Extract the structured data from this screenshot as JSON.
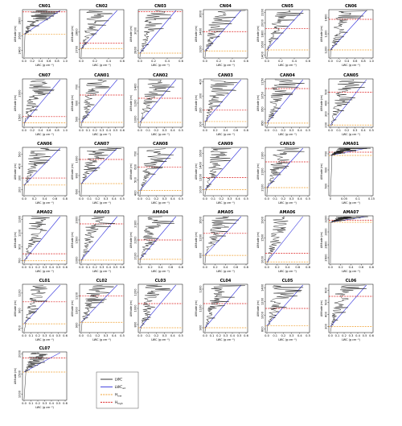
{
  "figure": {
    "colors": {
      "lwc": "#222222",
      "lwc_ad": "#3333dd",
      "h_low": "#f0a030",
      "h_high": "#dd2222"
    },
    "legend": {
      "entries": [
        {
          "key": "lwc",
          "label": "LWC",
          "sub": "",
          "style": "solid"
        },
        {
          "key": "lwc_ad",
          "label": "LWC",
          "sub": "ad",
          "style": "solid"
        },
        {
          "key": "h_low",
          "label": "H",
          "sub": "low",
          "style": "dashed"
        },
        {
          "key": "h_high",
          "label": "H",
          "sub": "high",
          "style": "dashed"
        }
      ]
    }
  },
  "chart_data": [
    {
      "type": "line",
      "title": "CN01",
      "xlabel": "LWC (g cm⁻³)",
      "ylabel": "Altitude (m)",
      "xticks": [
        "0.0",
        "0.2",
        "0.4",
        "0.6",
        "0.8",
        "1.0"
      ],
      "yticks": [
        "2400",
        "2600",
        "2800"
      ],
      "ylim": [
        2300,
        2950
      ],
      "h_low": 2620,
      "h_high": 2920
    },
    {
      "type": "line",
      "title": "CN02",
      "xlabel": "LWC (g cm⁻³)",
      "ylabel": "Altitude (m)",
      "xticks": [
        "0.0",
        "0.2",
        "0.4",
        "0.6"
      ],
      "yticks": [
        "2700",
        "2800"
      ],
      "ylim": [
        2650,
        2930
      ],
      "h_low": 2705,
      "h_high": 2735
    },
    {
      "type": "line",
      "title": "CN03",
      "xlabel": "LWC (g cm⁻³)",
      "ylabel": "Altitude (m)",
      "xticks": [
        "0.0",
        "0.2",
        "0.4",
        "0.6"
      ],
      "yticks": [
        "2800",
        "3000"
      ],
      "ylim": [
        2720,
        3220
      ],
      "h_low": 2770,
      "h_high": 3200
    },
    {
      "type": "line",
      "title": "CN04",
      "xlabel": "LWC (g cm⁻³)",
      "ylabel": "Altitude (m)",
      "xticks": [
        "0.0",
        "0.2",
        "0.4",
        "0.6"
      ],
      "yticks": [
        "3200",
        "3400",
        "3600"
      ],
      "ylim": [
        3100,
        3650
      ],
      "h_low": 3180,
      "h_high": 3400
    },
    {
      "type": "line",
      "title": "CN05",
      "xlabel": "LWC (g cm⁻³)",
      "ylabel": "Altitude (m)",
      "xticks": [
        "0.0",
        "0.2",
        "0.4",
        "0.6"
      ],
      "yticks": [
        "1400",
        "1600",
        "1800",
        "2000",
        "2200"
      ],
      "ylim": [
        1350,
        2250
      ],
      "h_low": 1500,
      "h_high": 1900
    },
    {
      "type": "line",
      "title": "CN06",
      "xlabel": "LWC (g cm⁻³)",
      "ylabel": "Altitude (m)",
      "xticks": [
        "0.0",
        "0.2",
        "0.4",
        "0.6",
        "0.8",
        "1.0"
      ],
      "yticks": [
        "1200",
        "1300",
        "1400"
      ],
      "ylim": [
        1150,
        1450
      ],
      "h_low": 1200,
      "h_high": 1390
    },
    {
      "type": "line",
      "title": "CN07",
      "xlabel": "LWC (g cm⁻³)",
      "ylabel": "Altitude (m)",
      "xticks": [
        "0.0",
        "0.2",
        "0.4",
        "0.6",
        "0.8",
        "1.0"
      ],
      "yticks": [
        "1500",
        "2000"
      ],
      "ylim": [
        1300,
        2300
      ],
      "h_low": 1390,
      "h_high": 1520
    },
    {
      "type": "line",
      "title": "CAN01",
      "xlabel": "LWC (g cm⁻³)",
      "ylabel": "Altitude (m)",
      "xticks": [
        "0.0",
        "0.1",
        "0.2",
        "0.3",
        "0.4",
        "0.5",
        "0.6"
      ],
      "yticks": [
        "500",
        "600",
        "700"
      ],
      "ylim": [
        450,
        750
      ],
      "h_low": 480,
      "h_high": 650
    },
    {
      "type": "line",
      "title": "CAN02",
      "xlabel": "LWC (g cm⁻³)",
      "ylabel": "Altitude (m)",
      "xticks": [
        "0.0",
        "0.1",
        "0.2",
        "0.3",
        "0.4",
        "0.5"
      ],
      "yticks": [
        "1000",
        "1200",
        "1400"
      ],
      "ylim": [
        900,
        1500
      ],
      "h_low": 960,
      "h_high": 1260
    },
    {
      "type": "line",
      "title": "CAN03",
      "xlabel": "LWC (g cm⁻³)",
      "ylabel": "Altitude (m)",
      "xticks": [
        "0.0",
        "0.2",
        "0.4",
        "0.6",
        "0.8"
      ],
      "yticks": [
        "100",
        "200",
        "300",
        "400"
      ],
      "ylim": [
        80,
        420
      ],
      "h_low": 120,
      "h_high": 200
    },
    {
      "type": "line",
      "title": "CAN04",
      "xlabel": "LWC (g cm⁻³)",
      "ylabel": "Altitude (m)",
      "xticks": [
        "0.0",
        "0.1",
        "0.2",
        "0.3",
        "0.4",
        "0.5"
      ],
      "yticks": [
        "850",
        "950",
        "1050",
        "1150"
      ],
      "ylim": [
        820,
        1170
      ],
      "h_low": 850,
      "h_high": 1100
    },
    {
      "type": "line",
      "title": "CAN05",
      "xlabel": "LWC (g cm⁻³)",
      "ylabel": "Altitude (m)",
      "xticks": [
        "0.0",
        "0.1",
        "0.2",
        "0.3",
        "0.4",
        "0.5"
      ],
      "yticks": [
        "200",
        "300",
        "400",
        "500"
      ],
      "ylim": [
        180,
        620
      ],
      "h_low": 200,
      "h_high": 500
    },
    {
      "type": "line",
      "title": "CAN06",
      "xlabel": "LWC (g cm⁻³)",
      "ylabel": "Altitude (m)",
      "xticks": [
        "0.0",
        "0.2",
        "0.4",
        "0.6",
        "0.8"
      ],
      "yticks": [
        "200",
        "300",
        "400",
        "500"
      ],
      "ylim": [
        150,
        560
      ],
      "h_low": 240,
      "h_high": 300
    },
    {
      "type": "line",
      "title": "CAN07",
      "xlabel": "LWC (g cm⁻³)",
      "ylabel": "Altitude (m)",
      "xticks": [
        "0.0",
        "0.1",
        "0.2",
        "0.3",
        "0.4",
        "0.5"
      ],
      "yticks": [
        "600",
        "800",
        "1000"
      ],
      "ylim": [
        550,
        1150
      ],
      "h_low": 700,
      "h_high": 1000
    },
    {
      "type": "line",
      "title": "CAN08",
      "xlabel": "LWC (g cm⁻³)",
      "ylabel": "Altitude (m)",
      "xticks": [
        "0.0",
        "0.1",
        "0.2",
        "0.3",
        "0.4",
        "0.5"
      ],
      "yticks": [
        "400",
        "500",
        "600",
        "700"
      ],
      "ylim": [
        380,
        750
      ],
      "h_low": 420,
      "h_high": 600
    },
    {
      "type": "line",
      "title": "CAN09",
      "xlabel": "LWC (g cm⁻³)",
      "ylabel": "Altitude (m)",
      "xticks": [
        "0.0",
        "0.1",
        "0.2",
        "0.3",
        "0.4",
        "0.5"
      ],
      "yticks": [
        "1000",
        "1200",
        "1400",
        "1600"
      ],
      "ylim": [
        900,
        1700
      ],
      "h_low": 1000,
      "h_high": 1200
    },
    {
      "type": "line",
      "title": "CAN10",
      "xlabel": "LWC (g cm⁻³)",
      "ylabel": "Altitude (m)",
      "xticks": [
        "0.0",
        "0.1",
        "0.2",
        "0.3",
        "0.4",
        "0.5"
      ],
      "yticks": [
        "2100",
        "2200",
        "2300"
      ],
      "ylim": [
        2050,
        2350
      ],
      "h_low": 2100,
      "h_high": 2260
    },
    {
      "type": "line",
      "title": "AMA01",
      "xlabel": "LWC (g cm⁻³)",
      "ylabel": "Altitude (m)",
      "xticks": [
        "0",
        "0.05",
        "0.1",
        "0.15"
      ],
      "yticks": [
        "500",
        "600",
        "700"
      ],
      "ylim": [
        440,
        740
      ],
      "h_low": 690,
      "h_high": 710
    },
    {
      "type": "line",
      "title": "AMA02",
      "xlabel": "LWC (g cm⁻³)",
      "ylabel": "Altitude (m)",
      "xticks": [
        "0.0",
        "0.1",
        "0.2",
        "0.3",
        "0.4",
        "0.5",
        "0.6"
      ],
      "yticks": [
        "700",
        "900",
        "1100",
        "1300"
      ],
      "ylim": [
        650,
        1350
      ],
      "h_low": 700,
      "h_high": 800
    },
    {
      "type": "line",
      "title": "AMA03",
      "xlabel": "LWC (g cm⁻³)",
      "ylabel": "Altitude (m)",
      "xticks": [
        "0.0",
        "0.1",
        "0.2",
        "0.3",
        "0.4",
        "0.5",
        "0.6"
      ],
      "yticks": [
        "1000",
        "1500",
        "2000"
      ],
      "ylim": [
        900,
        2100
      ],
      "h_low": 1000,
      "h_high": 1900
    },
    {
      "type": "line",
      "title": "AMA04",
      "xlabel": "LWC (g cm⁻³)",
      "ylabel": "Altitude (m)",
      "xticks": [
        "0.0",
        "0.2",
        "0.4",
        "0.6",
        "0.8"
      ],
      "yticks": [
        "2100",
        "2200",
        "2300"
      ],
      "ylim": [
        2050,
        2350
      ],
      "h_low": 2080,
      "h_high": 2200
    },
    {
      "type": "line",
      "title": "AMA05",
      "xlabel": "LWC (g cm⁻³)",
      "ylabel": "Altitude (m)",
      "xticks": [
        "0.0",
        "0.2",
        "0.4",
        "0.6",
        "0.8"
      ],
      "yticks": [
        "800",
        "1200",
        "1600"
      ],
      "ylim": [
        600,
        1700
      ],
      "h_low": 800,
      "h_high": 1300
    },
    {
      "type": "line",
      "title": "AMA06",
      "xlabel": "LWC (g cm⁻³)",
      "ylabel": "Altitude (m)",
      "xticks": [
        "0.0",
        "0.2",
        "0.4",
        "0.6",
        "0.8"
      ],
      "yticks": [
        "1000",
        "1500",
        "1900"
      ],
      "ylim": [
        900,
        2000
      ],
      "h_low": 950,
      "h_high": 1150
    },
    {
      "type": "line",
      "title": "AMA07",
      "xlabel": "LWC (g cm⁻³)",
      "ylabel": "Altitude (m)",
      "xticks": [
        "0.0",
        "0.2",
        "0.4",
        "0.6",
        "0.8"
      ],
      "yticks": [
        "2600",
        "2800",
        "3000",
        "3200"
      ],
      "ylim": [
        2500,
        3250
      ],
      "h_low": 3150,
      "h_high": 3180
    },
    {
      "type": "line",
      "title": "CL01",
      "xlabel": "LWC (g cm⁻³)",
      "ylabel": "Altitude (m)",
      "xticks": [
        "0.0",
        "0.1",
        "0.2",
        "0.3",
        "0.4",
        "0.5",
        "0.6"
      ],
      "yticks": [
        "700",
        "900",
        "1100"
      ],
      "ylim": [
        650,
        1200
      ],
      "h_low": 750,
      "h_high": 1000
    },
    {
      "type": "line",
      "title": "CL02",
      "xlabel": "LWC (g cm⁻³)",
      "ylabel": "Altitude (m)",
      "xticks": [
        "0.0",
        "0.1",
        "0.2",
        "0.3",
        "0.4",
        "0.5"
      ],
      "yticks": [
        "900",
        "1000",
        "1100"
      ],
      "ylim": [
        850,
        1180
      ],
      "h_low": 920,
      "h_high": 1100
    },
    {
      "type": "line",
      "title": "CL03",
      "xlabel": "LWC (g cm⁻³)",
      "ylabel": "Altitude (m)",
      "xticks": [
        "0.0",
        "0.1",
        "0.2",
        "0.3",
        "0.4",
        "0.5"
      ],
      "yticks": [
        "800",
        "1000",
        "1200"
      ],
      "ylim": [
        700,
        1300
      ],
      "h_low": 760,
      "h_high": 1060
    },
    {
      "type": "line",
      "title": "CL04",
      "xlabel": "LWC (g cm⁻³)",
      "ylabel": "Altitude (m)",
      "xticks": [
        "0.0",
        "0.1",
        "0.2",
        "0.3",
        "0.4",
        "0.5",
        "0.6"
      ],
      "yticks": [
        "900",
        "1100",
        "1300"
      ],
      "ylim": [
        850,
        1350
      ],
      "h_low": 900,
      "h_high": 1150
    },
    {
      "type": "line",
      "title": "CL05",
      "xlabel": "LWC (g cm⁻³)",
      "ylabel": "Altitude (m)",
      "xticks": [
        "0.0",
        "0.1",
        "0.2",
        "0.3",
        "0.4",
        "0.5"
      ],
      "yticks": [
        "800",
        "1000",
        "1200",
        "1400"
      ],
      "ylim": [
        750,
        1450
      ],
      "h_low": 850,
      "h_high": 1100
    },
    {
      "type": "line",
      "title": "CL06",
      "xlabel": "LWC (g cm⁻³)",
      "ylabel": "Altitude (m)",
      "xticks": [
        "0.0",
        "0.1",
        "0.2",
        "0.3",
        "0.4",
        "0.5",
        "0.6"
      ],
      "yticks": [
        "300",
        "400",
        "500",
        "600"
      ],
      "ylim": [
        250,
        650
      ],
      "h_low": 300,
      "h_high": 550
    },
    {
      "type": "line",
      "title": "CL07",
      "xlabel": "LWC (g cm⁻³)",
      "ylabel": "Altitude (m)",
      "xticks": [
        "0.0",
        "0.1",
        "0.2",
        "0.3",
        "0.4",
        "0.5",
        "0.6"
      ],
      "yticks": [
        "1000",
        "1500",
        "2000"
      ],
      "ylim": [
        850,
        2050
      ],
      "h_low": 1550,
      "h_high": 1900
    }
  ]
}
